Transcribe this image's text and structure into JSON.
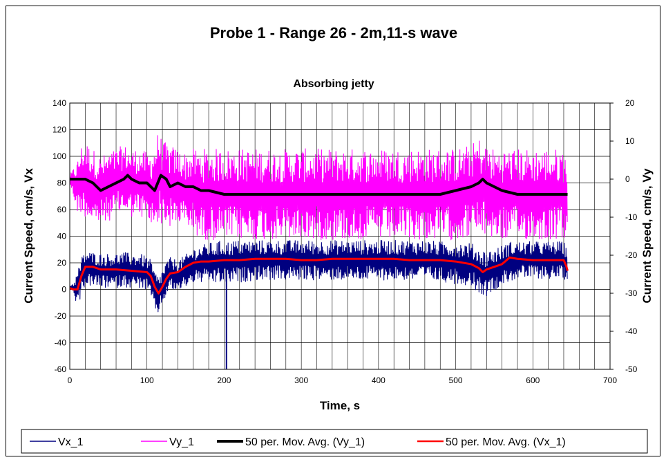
{
  "chart_data": {
    "type": "line",
    "title": "Probe 1 - Range 26 - 2m,11-s wave",
    "subtitle": "Absorbing jetty",
    "xlabel": "Time, s",
    "ylabel_left": "Current Speed, cm/s, Vx",
    "ylabel_right": "Current Speed, cm/s, Vy",
    "xlim": [
      0,
      700
    ],
    "ylim_left": [
      -60,
      140
    ],
    "ylim_right": [
      -50,
      20
    ],
    "x_ticks": [
      "0",
      "100",
      "200",
      "300",
      "400",
      "500",
      "600",
      "700"
    ],
    "y_left_ticks": [
      "-60",
      "-40",
      "-20",
      "0",
      "20",
      "40",
      "60",
      "80",
      "100",
      "120",
      "140"
    ],
    "y_right_ticks": [
      "-50",
      "-40",
      "-30",
      "-20",
      "-10",
      "0",
      "10",
      "20"
    ],
    "grid": true,
    "legend_position": "bottom",
    "series": [
      {
        "name": "Vx_1",
        "axis": "left",
        "color": "#000080",
        "x": [
          0,
          5,
          10,
          15,
          20,
          30,
          40,
          50,
          60,
          70,
          80,
          90,
          100,
          105,
          110,
          115,
          120,
          125,
          130,
          140,
          150,
          160,
          170,
          180,
          190,
          200,
          203,
          210,
          220,
          240,
          260,
          280,
          300,
          320,
          340,
          360,
          380,
          400,
          420,
          440,
          460,
          480,
          500,
          520,
          530,
          540,
          550,
          560,
          570,
          580,
          600,
          620,
          640,
          645
        ],
        "mean": [
          2,
          1,
          0,
          10,
          16,
          15,
          14,
          14,
          14,
          15,
          14,
          14,
          12,
          8,
          -2,
          -4,
          2,
          8,
          12,
          10,
          14,
          18,
          19,
          20,
          20,
          21,
          20,
          21,
          21,
          22,
          22,
          22,
          22,
          22,
          22,
          22,
          22,
          22,
          22,
          22,
          22,
          21,
          20,
          19,
          14,
          12,
          15,
          18,
          21,
          22,
          22,
          22,
          22,
          18
        ],
        "amp": [
          1,
          4,
          14,
          14,
          13,
          13,
          13,
          13,
          13,
          13,
          13,
          13,
          13,
          14,
          16,
          14,
          13,
          13,
          12,
          12,
          12,
          13,
          14,
          15,
          16,
          16,
          16,
          16,
          16,
          15,
          15,
          15,
          15,
          15,
          15,
          15,
          15,
          15,
          15,
          15,
          15,
          15,
          16,
          16,
          17,
          17,
          16,
          15,
          15,
          14,
          14,
          14,
          14,
          12
        ],
        "spike": {
          "x": 203,
          "y": -60
        }
      },
      {
        "name": "Vy_1",
        "axis": "right",
        "color": "#FF00FF",
        "x": [
          0,
          5,
          10,
          15,
          20,
          30,
          40,
          50,
          60,
          70,
          80,
          90,
          100,
          105,
          110,
          115,
          120,
          130,
          140,
          150,
          160,
          170,
          180,
          200,
          220,
          240,
          260,
          280,
          300,
          320,
          340,
          360,
          380,
          400,
          420,
          440,
          460,
          480,
          500,
          520,
          530,
          540,
          550,
          560,
          580,
          600,
          620,
          640,
          645
        ],
        "mean": [
          0,
          -1,
          -2,
          0,
          0,
          -2,
          -3,
          -2,
          -1,
          0,
          -1,
          -1,
          -2,
          -3,
          -2,
          1,
          -1,
          -2,
          -2,
          -3,
          -3,
          -4,
          -4,
          -4,
          -4,
          -4,
          -4,
          -4,
          -4,
          -4,
          -4,
          -4,
          -4,
          -4,
          -4,
          -4,
          -4,
          -4,
          -4,
          -3,
          -2,
          -3,
          -4,
          -4,
          -4,
          -4,
          -4,
          -4,
          -4
        ],
        "amp": [
          1,
          4,
          7,
          9,
          10,
          10,
          9,
          9,
          9,
          9,
          9,
          9,
          9,
          10,
          11,
          12,
          11,
          11,
          10,
          10,
          11,
          12,
          12,
          12,
          12,
          12,
          12,
          12,
          12,
          12,
          12,
          12,
          12,
          12,
          12,
          12,
          12,
          12,
          12,
          12,
          13,
          12,
          12,
          12,
          12,
          12,
          12,
          12,
          11
        ]
      },
      {
        "name": "50 per. Mov. Avg. (Vy_1)",
        "axis": "right",
        "color": "#000000",
        "x": [
          0,
          10,
          20,
          30,
          40,
          50,
          60,
          70,
          75,
          80,
          90,
          100,
          110,
          118,
          125,
          130,
          140,
          150,
          160,
          170,
          180,
          200,
          220,
          240,
          260,
          280,
          300,
          320,
          340,
          360,
          380,
          400,
          420,
          440,
          460,
          480,
          500,
          520,
          530,
          535,
          540,
          550,
          560,
          580,
          600,
          620,
          640,
          645
        ],
        "values": [
          0,
          0,
          0,
          -1,
          -3,
          -2,
          -1,
          0,
          1,
          0,
          -1,
          -1,
          -3,
          1,
          0,
          -2,
          -1,
          -2,
          -2,
          -3,
          -3,
          -4,
          -4,
          -4,
          -4,
          -4,
          -4,
          -4,
          -4,
          -4,
          -4,
          -4,
          -4,
          -4,
          -4,
          -4,
          -3,
          -2,
          -1,
          0,
          -1,
          -2,
          -3,
          -4,
          -4,
          -4,
          -4,
          -4
        ]
      },
      {
        "name": "50 per. Mov. Avg. (Vx_1)",
        "axis": "left",
        "color": "#FF0000",
        "x": [
          0,
          5,
          10,
          15,
          20,
          30,
          40,
          60,
          80,
          100,
          105,
          110,
          115,
          120,
          125,
          130,
          140,
          150,
          160,
          170,
          180,
          200,
          220,
          240,
          260,
          280,
          300,
          320,
          340,
          360,
          380,
          400,
          420,
          440,
          460,
          480,
          500,
          520,
          530,
          535,
          540,
          550,
          560,
          570,
          580,
          600,
          620,
          640,
          643,
          645
        ],
        "values": [
          1,
          0,
          0,
          10,
          17,
          17,
          15,
          15,
          14,
          13,
          10,
          2,
          -3,
          2,
          8,
          12,
          13,
          17,
          20,
          21,
          21,
          22,
          22,
          23,
          23,
          23,
          22,
          22,
          23,
          23,
          23,
          23,
          23,
          22,
          22,
          22,
          21,
          19,
          16,
          13,
          15,
          17,
          19,
          24,
          23,
          22,
          22,
          22,
          18,
          14
        ]
      }
    ]
  }
}
